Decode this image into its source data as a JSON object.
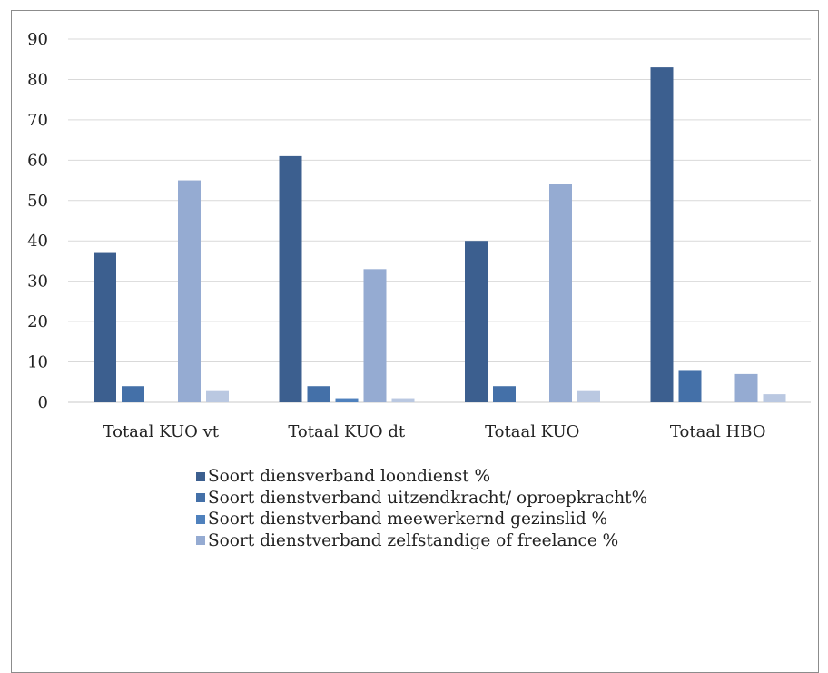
{
  "chart_data": {
    "type": "bar",
    "categories": [
      "Totaal KUO vt",
      "Totaal KUO dt",
      "Totaal KUO",
      "Totaal HBO"
    ],
    "series": [
      {
        "name": "Soort diensverband loondienst %",
        "color": "#3c5f8f",
        "values": [
          37,
          61,
          40,
          83
        ]
      },
      {
        "name": "Soort dienstverband uitzendkracht/ oproepkracht%",
        "color": "#4470a8",
        "values": [
          4,
          4,
          4,
          8
        ]
      },
      {
        "name": "Soort dienstverband meewerkernd gezinslid %",
        "color": "#4f81bd",
        "values": [
          0,
          1,
          0,
          0
        ]
      },
      {
        "name": "Soort dienstverband zelfstandige of freelance %",
        "color": "#95abd2",
        "values": [
          55,
          33,
          54,
          7
        ]
      },
      {
        "name": "",
        "color": "#bac8e1",
        "values": [
          3,
          1,
          3,
          2
        ]
      }
    ],
    "ylim": [
      0,
      90
    ],
    "yticks": [
      0,
      10,
      20,
      30,
      40,
      50,
      60,
      70,
      80,
      90
    ],
    "grid": true,
    "legend_position": "bottom",
    "title": "",
    "xlabel": "",
    "ylabel": ""
  }
}
